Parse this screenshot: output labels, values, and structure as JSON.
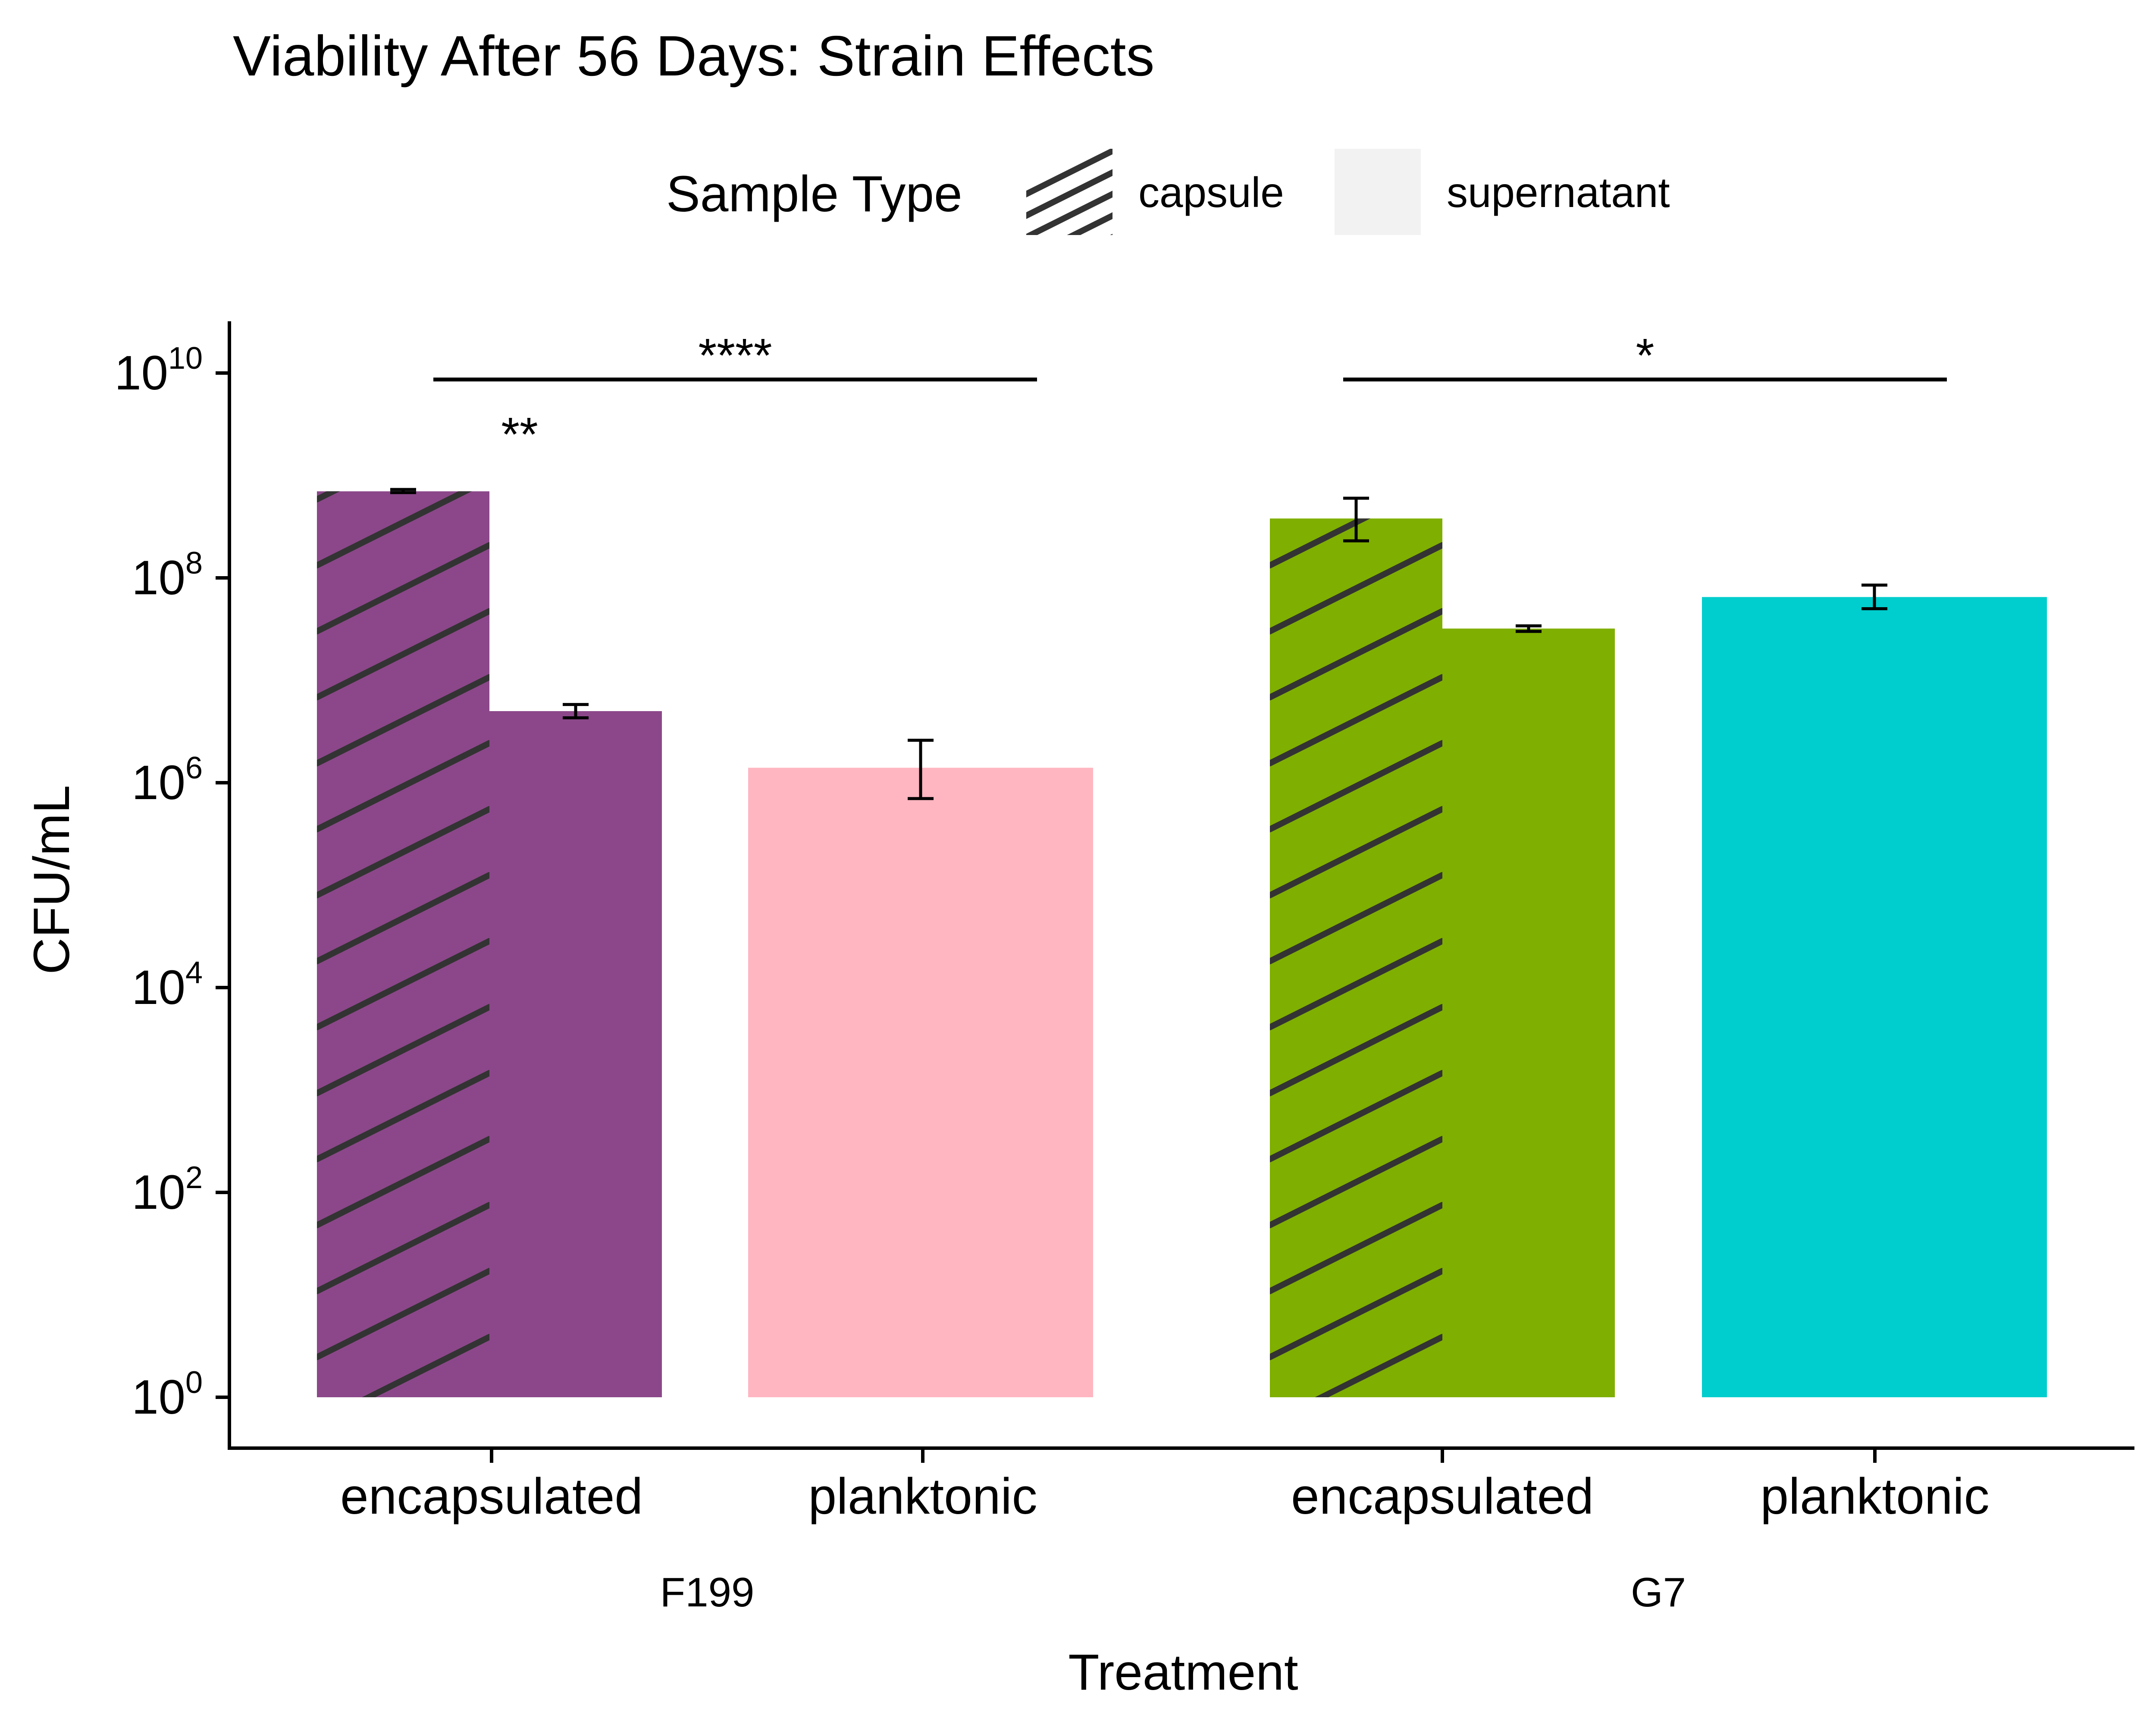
{
  "chart_data": {
    "type": "bar",
    "title": "Viability After 56 Days: Strain Effects",
    "xlabel": "Treatment",
    "ylabel": "CFU/mL",
    "yscale": "log10",
    "ylim": [
      1,
      10000000000
    ],
    "ytick_base": "10",
    "yticks": [
      {
        "exp": "0",
        "value": 1
      },
      {
        "exp": "2",
        "value": 100
      },
      {
        "exp": "4",
        "value": 10000
      },
      {
        "exp": "6",
        "value": 1000000
      },
      {
        "exp": "8",
        "value": 100000000
      },
      {
        "exp": "10",
        "value": 10000000000
      }
    ],
    "legend": {
      "title": "Sample Type",
      "position": "top",
      "items": [
        {
          "label": "capsule",
          "pattern": "hatched"
        },
        {
          "label": "supernatant",
          "pattern": "solid"
        }
      ]
    },
    "groups": [
      {
        "name": "F199",
        "categories": [
          {
            "label": "encapsulated",
            "bars": [
              {
                "sample": "capsule",
                "value": 700000000,
                "err_low": 680000000,
                "err_high": 730000000,
                "color": "#8B4789",
                "pattern": "hatched"
              },
              {
                "sample": "supernatant",
                "value": 5000000,
                "err_low": 4300000,
                "err_high": 5800000,
                "color": "#8B4789",
                "pattern": "solid"
              }
            ]
          },
          {
            "label": "planktonic",
            "bars": [
              {
                "sample": "",
                "value": 1400000,
                "err_low": 700000,
                "err_high": 2600000,
                "color": "#FFB6C1",
                "pattern": "solid"
              }
            ]
          }
        ]
      },
      {
        "name": "G7",
        "categories": [
          {
            "label": "encapsulated",
            "bars": [
              {
                "sample": "capsule",
                "value": 380000000,
                "err_low": 230000000,
                "err_high": 600000000,
                "color": "#7FAF00",
                "pattern": "hatched"
              },
              {
                "sample": "supernatant",
                "value": 32000000,
                "err_low": 30000000,
                "err_high": 34000000,
                "color": "#7FAF00",
                "pattern": "solid"
              }
            ]
          },
          {
            "label": "planktonic",
            "bars": [
              {
                "sample": "",
                "value": 65000000,
                "err_low": 50000000,
                "err_high": 85000000,
                "color": "#00CDCD",
                "pattern": "solid"
              }
            ]
          }
        ]
      }
    ],
    "annotations": [
      {
        "text": "****",
        "type": "bracket",
        "group": 0
      },
      {
        "text": "*",
        "type": "bracket",
        "group": 1
      },
      {
        "text": "**",
        "type": "label",
        "group": 0
      }
    ]
  }
}
